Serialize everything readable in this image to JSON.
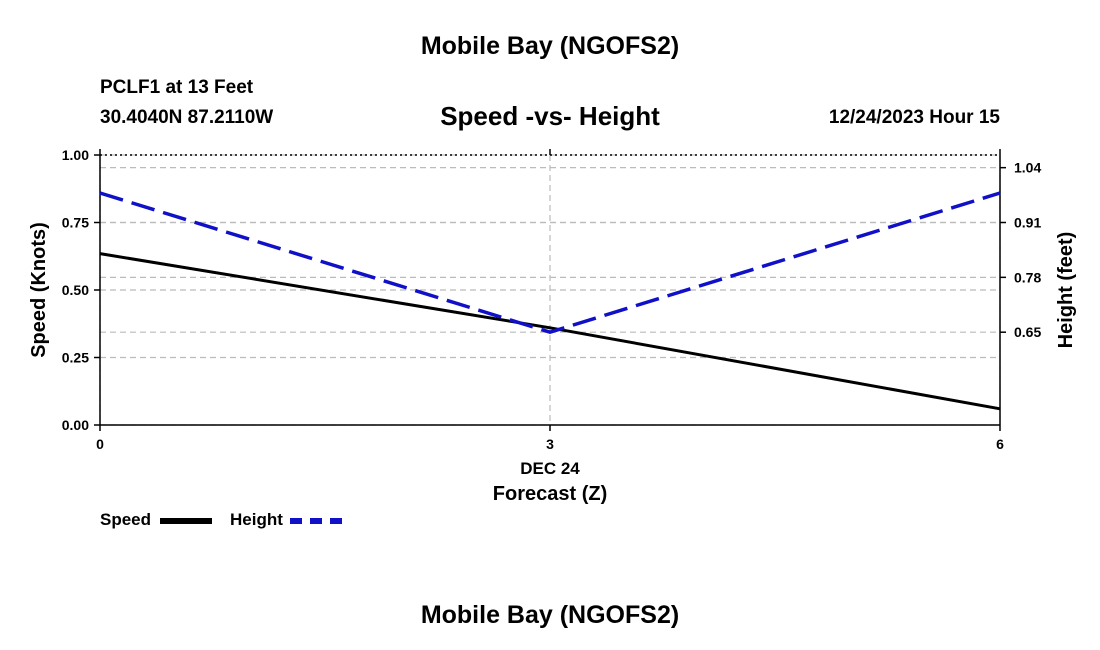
{
  "header": {
    "title": "Mobile Bay (NGOFS2)",
    "station": "PCLF1 at 13 Feet",
    "coords": "30.4040N  87.2110W",
    "subtitle": "Speed -vs- Height",
    "datetime": "12/24/2023 Hour 15"
  },
  "footer": {
    "title": "Mobile Bay (NGOFS2)"
  },
  "chart_data": {
    "type": "line",
    "title": "Speed -vs- Height",
    "x": [
      0,
      3,
      6
    ],
    "xlim": [
      0,
      6
    ],
    "xticks": [
      "0",
      "3",
      "6"
    ],
    "xlabel_date": "DEC 24",
    "xlabel": "Forecast (Z)",
    "ylabel_left": "Speed (Knots)",
    "ylim_left": [
      0,
      1.0
    ],
    "yticks_left": [
      "0.00",
      "0.25",
      "0.50",
      "0.75",
      "1.00"
    ],
    "ylabel_right": "Height (feet)",
    "ylim_right": [
      0.43,
      1.07
    ],
    "yticks_right": [
      "0.65",
      "0.78",
      "0.91",
      "1.04"
    ],
    "grid": true,
    "series": [
      {
        "name": "Speed",
        "axis": "left",
        "color": "#000000",
        "style": "solid",
        "values": [
          0.635,
          0.36,
          0.06
        ]
      },
      {
        "name": "Height",
        "axis": "right",
        "color": "#1010c8",
        "style": "dashed",
        "values": [
          0.98,
          0.65,
          0.98
        ]
      }
    ],
    "legend": [
      {
        "label": "Speed",
        "color": "#000000",
        "style": "solid"
      },
      {
        "label": "Height",
        "color": "#1010c8",
        "style": "dashed"
      }
    ]
  }
}
